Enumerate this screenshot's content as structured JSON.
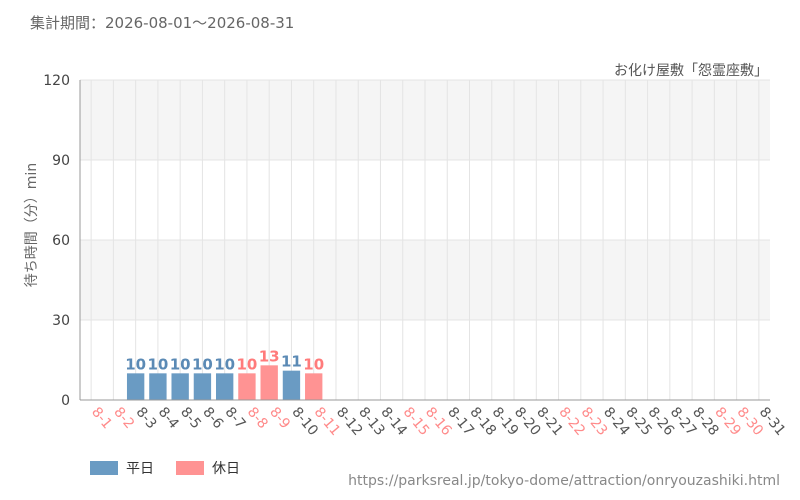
{
  "header": {
    "period": "集計期間：2026-08-01～2026-08-31",
    "attraction": "お化け屋敷「怨霊座敷」"
  },
  "legend": {
    "weekday_label": "平日",
    "holiday_label": "休日"
  },
  "source_url": "https://parksreal.jp/tokyo-dome/attraction/onryouzashiki.html",
  "colors": {
    "weekday": "#6a9bc3",
    "holiday": "#ff9393",
    "tick_weekday": "#555555",
    "tick_holiday": "#ff8a8a",
    "label_weekday": "#5b8ab5",
    "label_holiday": "#ff7b7b",
    "band": "#f5f5f5",
    "grid": "#e4e4e4"
  },
  "chart_data": {
    "type": "bar",
    "ylabel": "待ち時間（分）min",
    "ylim": [
      0,
      120
    ],
    "yticks": [
      0,
      30,
      60,
      90,
      120
    ],
    "grid": true,
    "legend_position": "bottom-left",
    "categories": [
      "8-1",
      "8-2",
      "8-3",
      "8-4",
      "8-5",
      "8-6",
      "8-7",
      "8-8",
      "8-9",
      "8-10",
      "8-11",
      "8-12",
      "8-13",
      "8-14",
      "8-15",
      "8-16",
      "8-17",
      "8-18",
      "8-19",
      "8-20",
      "8-21",
      "8-22",
      "8-23",
      "8-24",
      "8-25",
      "8-26",
      "8-27",
      "8-28",
      "8-29",
      "8-30",
      "8-31"
    ],
    "holidays": [
      "8-1",
      "8-2",
      "8-8",
      "8-9",
      "8-11",
      "8-15",
      "8-16",
      "8-22",
      "8-23",
      "8-29",
      "8-30"
    ],
    "series": [
      {
        "name": "平日",
        "values": [
          null,
          null,
          10,
          10,
          10,
          10,
          10,
          null,
          null,
          11,
          null,
          null,
          null,
          null,
          null,
          null,
          null,
          null,
          null,
          null,
          null,
          null,
          null,
          null,
          null,
          null,
          null,
          null,
          null,
          null,
          null
        ]
      },
      {
        "name": "休日",
        "values": [
          null,
          null,
          null,
          null,
          null,
          null,
          null,
          10,
          13,
          null,
          10,
          null,
          null,
          null,
          null,
          null,
          null,
          null,
          null,
          null,
          null,
          null,
          null,
          null,
          null,
          null,
          null,
          null,
          null,
          null,
          null
        ]
      }
    ]
  }
}
